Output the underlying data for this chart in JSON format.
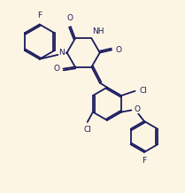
{
  "bg_color": "#fdf5e4",
  "line_color": "#1a1a5e",
  "text_color": "#1a1a5e",
  "lw": 1.3,
  "fs": 6.5,
  "figsize": [
    2.09,
    2.18
  ],
  "dpi": 100,
  "xlim": [
    0,
    100
  ],
  "ylim": [
    0,
    100
  ]
}
